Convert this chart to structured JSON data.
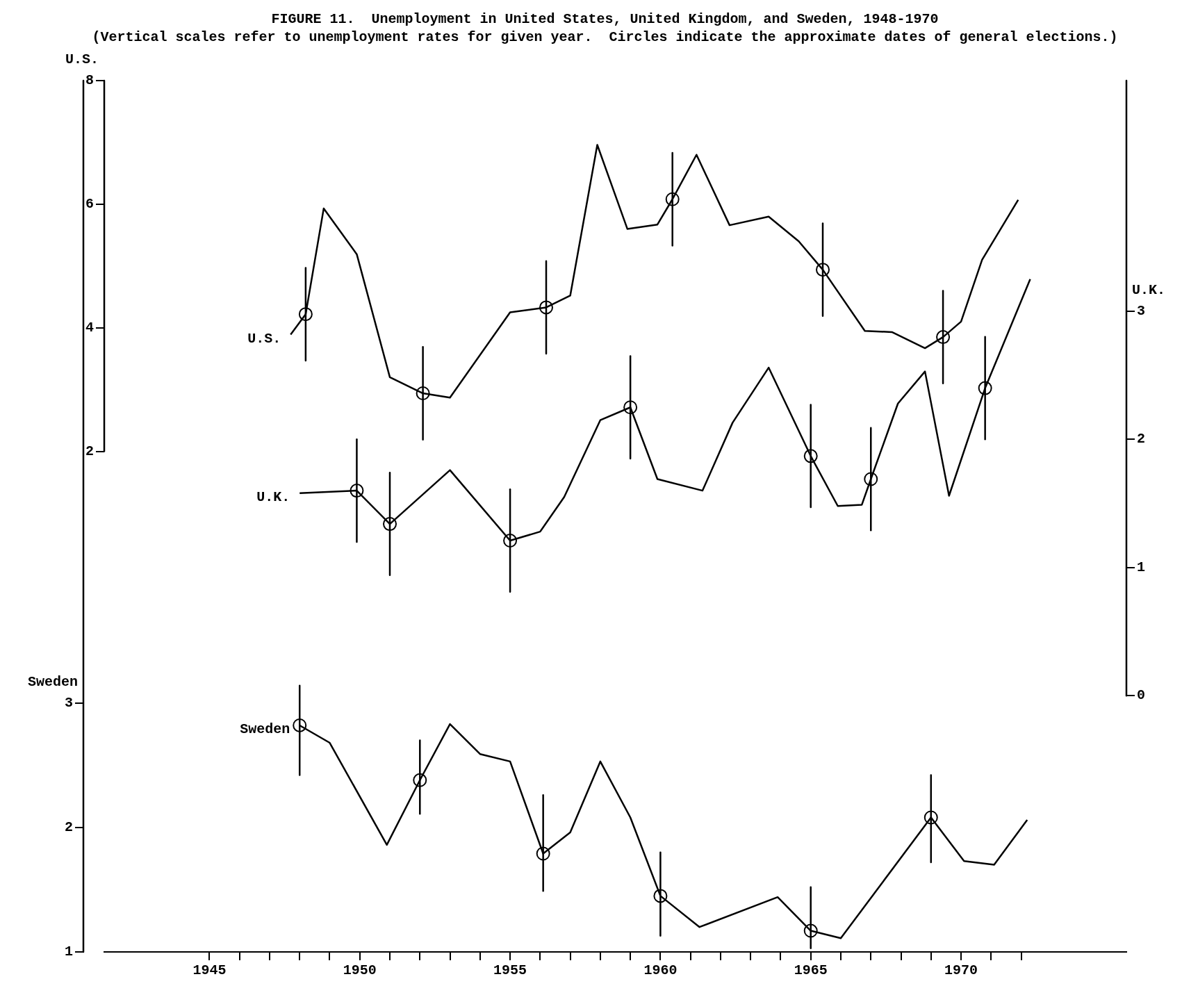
{
  "chart_data": {
    "type": "line",
    "title": "FIGURE 11.  Unemployment in United States, United Kingdom, and Sweden, 1948-1970",
    "subtitle": "(Vertical scales refer to unemployment rates for given year.  Circles indicate the approximate dates of general elections.)",
    "ylabel": "U.S.",
    "y2label": "U.K.",
    "y3label": "Sweden",
    "xlim": [
      1941.5,
      1975.5
    ],
    "xticks": [
      {
        "value": 1945,
        "label": "1945"
      },
      {
        "value": 1946,
        "label": null
      },
      {
        "value": 1947,
        "label": null
      },
      {
        "value": 1948,
        "label": null
      },
      {
        "value": 1949,
        "label": null
      },
      {
        "value": 1950,
        "label": "1950"
      },
      {
        "value": 1951,
        "label": null
      },
      {
        "value": 1952,
        "label": null
      },
      {
        "value": 1953,
        "label": null
      },
      {
        "value": 1954,
        "label": null
      },
      {
        "value": 1955,
        "label": "1955"
      },
      {
        "value": 1956,
        "label": null
      },
      {
        "value": 1957,
        "label": null
      },
      {
        "value": 1958,
        "label": null
      },
      {
        "value": 1959,
        "label": null
      },
      {
        "value": 1960,
        "label": "1960"
      },
      {
        "value": 1961,
        "label": null
      },
      {
        "value": 1962,
        "label": null
      },
      {
        "value": 1963,
        "label": null
      },
      {
        "value": 1964,
        "label": null
      },
      {
        "value": 1965,
        "label": "1965"
      },
      {
        "value": 1966,
        "label": null
      },
      {
        "value": 1967,
        "label": null
      },
      {
        "value": 1968,
        "label": null
      },
      {
        "value": 1969,
        "label": null
      },
      {
        "value": 1970,
        "label": "1970"
      },
      {
        "value": 1971,
        "label": null
      },
      {
        "value": 1972,
        "label": null
      }
    ],
    "ylim": [
      -6.1,
      8
    ],
    "yticks": [
      2,
      4,
      6,
      8
    ],
    "y2lim": [
      -2,
      4.8
    ],
    "y2ticks": [
      0,
      1,
      2,
      3
    ],
    "y3lim": [
      1,
      8
    ],
    "y3ticks": [
      1,
      2,
      3
    ],
    "grid": false,
    "legend": false,
    "series": [
      {
        "name": "U.S.",
        "type": "line",
        "axis": "y",
        "color": "#000000",
        "marker": "none",
        "x": [
          1947.7,
          1948.2,
          1948.8,
          1949.9,
          1951.0,
          1952.1,
          1953.0,
          1955.0,
          1956.2,
          1957.0,
          1957.9,
          1958.9,
          1959.9,
          1960.4,
          1961.2,
          1962.3,
          1963.6,
          1964.6,
          1965.4,
          1966.8,
          1967.7,
          1968.8,
          1969.4,
          1970.0,
          1970.7,
          1971.9
        ],
        "values": [
          3.89,
          4.22,
          5.93,
          5.19,
          3.2,
          2.94,
          2.87,
          4.25,
          4.33,
          4.52,
          6.96,
          5.6,
          5.67,
          6.08,
          6.8,
          5.66,
          5.8,
          5.4,
          4.94,
          3.95,
          3.93,
          3.67,
          3.85,
          4.1,
          5.1,
          6.07
        ]
      },
      {
        "type": "scatter",
        "axis": "y",
        "color": "#000000",
        "marker": "circle",
        "x": [
          1948.2,
          1952.1,
          1956.2,
          1960.4,
          1965.4,
          1969.4
        ],
        "values": [
          4.22,
          2.94,
          4.33,
          6.08,
          4.94,
          3.85
        ],
        "errors": [
          0.75,
          0.75,
          0.75,
          0.75,
          0.75,
          0.75
        ]
      },
      {
        "name": "U.K.",
        "type": "line",
        "axis": "y2",
        "color": "#000000",
        "marker": "none",
        "x": [
          1948.0,
          1949.9,
          1951.0,
          1953.0,
          1955.0,
          1956.0,
          1956.8,
          1958.0,
          1959.0,
          1959.9,
          1961.4,
          1962.4,
          1963.6,
          1965.0,
          1965.9,
          1966.7,
          1967.0,
          1967.9,
          1968.8,
          1969.6,
          1970.8,
          1972.3
        ],
        "values": [
          1.58,
          1.6,
          1.34,
          1.76,
          1.21,
          1.28,
          1.55,
          2.15,
          2.25,
          1.69,
          1.6,
          2.13,
          2.56,
          1.87,
          1.48,
          1.49,
          1.69,
          2.28,
          2.53,
          1.56,
          2.4,
          3.25
        ]
      },
      {
        "type": "scatter",
        "axis": "y2",
        "color": "#000000",
        "marker": "circle",
        "x": [
          1949.9,
          1951.0,
          1955.0,
          1959.0,
          1965.0,
          1967.0,
          1970.8
        ],
        "values": [
          1.6,
          1.34,
          1.21,
          2.25,
          1.87,
          1.69,
          2.4
        ],
        "errors": [
          0.4,
          0.4,
          0.4,
          0.4,
          0.4,
          0.4,
          0.4
        ]
      },
      {
        "name": "Sweden",
        "type": "line",
        "axis": "y3",
        "color": "#000000",
        "marker": "none",
        "x": [
          1948.0,
          1949.0,
          1950.9,
          1952.0,
          1953.0,
          1954.0,
          1955.0,
          1956.1,
          1957.0,
          1958.0,
          1959.0,
          1960.0,
          1961.3,
          1963.9,
          1965.0,
          1966.0,
          1969.0,
          1970.1,
          1971.1,
          1972.2
        ],
        "values": [
          2.82,
          2.68,
          1.86,
          2.38,
          2.83,
          2.59,
          2.53,
          1.79,
          1.96,
          2.53,
          2.08,
          1.45,
          1.2,
          1.44,
          1.17,
          1.11,
          2.08,
          1.73,
          1.7,
          2.06
        ]
      },
      {
        "type": "scatter",
        "axis": "y3",
        "color": "#000000",
        "marker": "circle",
        "x": [
          1948.0,
          1952.0,
          1956.1,
          1960.0,
          1965.0,
          1969.0
        ],
        "values": [
          2.82,
          2.38,
          1.79,
          1.45,
          1.17,
          2.08
        ],
        "errors": [
          [
            2.42,
            3.14
          ],
          [
            2.11,
            2.7
          ],
          [
            1.49,
            2.26
          ],
          [
            1.13,
            1.8
          ],
          [
            1.03,
            1.52
          ],
          [
            1.72,
            2.42
          ]
        ]
      }
    ]
  }
}
